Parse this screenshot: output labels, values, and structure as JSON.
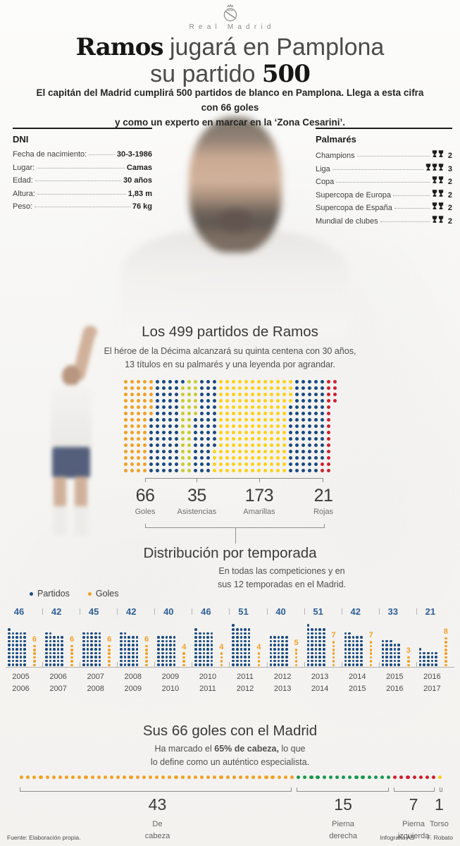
{
  "palette": {
    "blue": "#1a4a80",
    "number_blue": "#2e5f99",
    "orange": "#f0a125",
    "yellow": "#fdd118",
    "green_assist": "#c6cc2f",
    "red": "#cf1f30",
    "green": "#17994f",
    "torso_yellow": "#f3d021",
    "text_dark": "#1d1d1b"
  },
  "header": {
    "club": "Real Madrid",
    "title_bold": "Ramos",
    "title_rest": " jugará en Pamplona",
    "title2_pre": "su partido ",
    "title2_bold": "500",
    "subtitle_line1": "El capitán del Madrid cumplirá 500 partidos de blanco en Pamplona. Llega a esta cifra con 66 goles",
    "subtitle_line2": "y como un experto en marcar en la ‘Zona Cesarini’."
  },
  "dni": {
    "heading": "DNI",
    "rows": [
      {
        "label": "Fecha de nacimiento:",
        "value": "30-3-1986"
      },
      {
        "label": "Lugar:",
        "value": "Camas"
      },
      {
        "label": "Edad:",
        "value": "30 años"
      },
      {
        "label": "Altura:",
        "value": "1,83 m"
      },
      {
        "label": "Peso:",
        "value": "76 kg"
      }
    ]
  },
  "palmares": {
    "heading": "Palmarés",
    "rows": [
      {
        "label": "Champions",
        "count": 2
      },
      {
        "label": "Liga",
        "count": 3
      },
      {
        "label": "Copa",
        "count": 2
      },
      {
        "label": "Supercopa de Europa",
        "count": 2
      },
      {
        "label": "Supercopa de España",
        "count": 2
      },
      {
        "label": "Mundial de clubes",
        "count": 2
      }
    ]
  },
  "sections": {
    "partidos": {
      "title": "Los 499 partidos de Ramos",
      "subtitle_line1": "El héroe de la Décima alcanzará su quinta centena con 30 años,",
      "subtitle_line2": "13 títulos en su palmarés y una leyenda por agrandar."
    },
    "temporada": {
      "title": "Distribución por temporada",
      "subtitle_line1": "En todas las competiciones y en",
      "subtitle_line2": "sus 12 temporadas en el Madrid."
    },
    "goles": {
      "title": "Sus 66 goles con el Madrid",
      "subtitle_pre": "Ha marcado el ",
      "subtitle_bold": "65% de cabeza,",
      "subtitle_post": " lo que",
      "subtitle_line2": "lo define como un auténtico especialista."
    }
  },
  "legend": {
    "partidos_label": "Partidos",
    "goles_label": "Goles"
  },
  "footer": {
    "source": "Fuente: Elaboración propia.",
    "credit1": "Infografía AS",
    "credit2": "F. Robato"
  },
  "chart_data": [
    {
      "id": "partidos_matrix",
      "type": "bar",
      "subtype": "dot-matrix-pictogram",
      "title": "Los 499 partidos de Ramos",
      "total": 499,
      "rows": 15,
      "categories": [
        "Goles",
        "Asistencias",
        "Amarillas",
        "Rojas"
      ],
      "values": [
        66,
        35,
        173,
        21
      ],
      "stat_positions_pct": [
        0,
        29,
        64,
        100
      ],
      "dot_sequence": [
        {
          "color": "orange",
          "count": 66
        },
        {
          "color": "blue",
          "count": 70
        },
        {
          "color": "green_assist",
          "count": 35
        },
        {
          "color": "blue",
          "count": 50
        },
        {
          "color": "yellow",
          "count": 173
        },
        {
          "color": "blue",
          "count": 84
        },
        {
          "color": "red",
          "count": 21
        }
      ]
    },
    {
      "id": "temporadas",
      "type": "bar",
      "subtype": "dot-pictogram-by-season",
      "title": "Distribución por temporada",
      "categories": [
        "2005-2006",
        "2006-2007",
        "2007-2008",
        "2008-2009",
        "2009-2010",
        "2010-2011",
        "2011-2012",
        "2012-2013",
        "2013-2014",
        "2014-2015",
        "2015-2016",
        "2016-2017"
      ],
      "series": [
        {
          "name": "Partidos",
          "color": "blue",
          "values": [
            46,
            42,
            45,
            42,
            40,
            46,
            51,
            40,
            51,
            42,
            33,
            21
          ]
        },
        {
          "name": "Goles",
          "color": "orange",
          "values": [
            6,
            6,
            6,
            6,
            4,
            4,
            4,
            5,
            7,
            7,
            3,
            8
          ]
        }
      ]
    },
    {
      "id": "goles_tipo",
      "type": "bar",
      "subtype": "dot-strip",
      "title": "Sus 66 goles con el Madrid",
      "total": 66,
      "categories": [
        "De cabeza",
        "Pierna derecha",
        "Pierna izquierda",
        "Torso"
      ],
      "values": [
        43,
        15,
        7,
        1
      ],
      "colors": [
        "orange",
        "green",
        "red",
        "torso_yellow"
      ],
      "label_lines": [
        [
          "De",
          "cabeza"
        ],
        [
          "Pierna",
          "derecha"
        ],
        [
          "Pierna",
          "izquierda"
        ],
        [
          "Torso"
        ]
      ]
    }
  ]
}
